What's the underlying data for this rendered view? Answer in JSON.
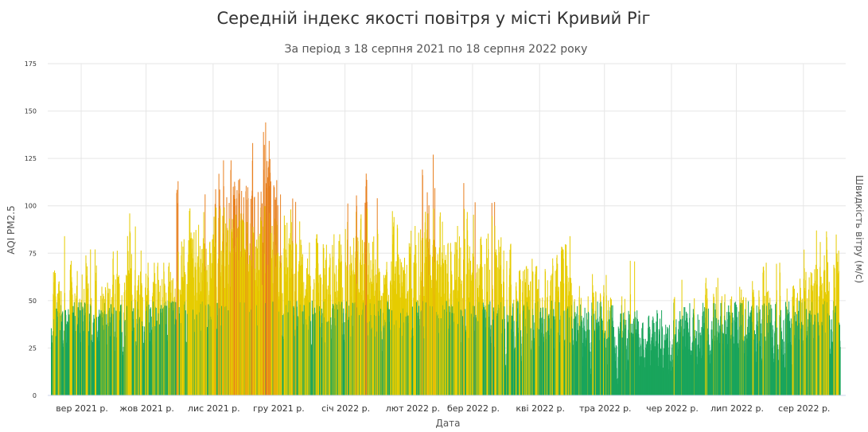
{
  "chart_data": {
    "type": "bar",
    "title": "Середній індекс якості повітря у місті Кривий Ріг",
    "subtitle": "За період з 18 серпня 2021 по 18 серпня 2022 року",
    "xlabel": "Дата",
    "ylabel": "AQI PM2.5",
    "y2label": "Швидкість вітру (м/с)",
    "ylim": [
      0,
      175
    ],
    "yticks": [
      0,
      25,
      50,
      75,
      100,
      125,
      150,
      175
    ],
    "xlim": [
      "2021-08-18",
      "2022-08-18"
    ],
    "xticks": [
      {
        "date": "2021-09-01",
        "label": "вер 2021 р."
      },
      {
        "date": "2021-10-01",
        "label": "жов 2021 р."
      },
      {
        "date": "2021-11-01",
        "label": "лис 2021 р."
      },
      {
        "date": "2021-12-01",
        "label": "гру 2021 р."
      },
      {
        "date": "2022-01-01",
        "label": "січ 2022 р."
      },
      {
        "date": "2022-02-01",
        "label": "лют 2022 р."
      },
      {
        "date": "2022-03-01",
        "label": "бер 2022 р."
      },
      {
        "date": "2022-04-01",
        "label": "кві 2022 р."
      },
      {
        "date": "2022-05-01",
        "label": "тра 2022 р."
      },
      {
        "date": "2022-06-01",
        "label": "чер 2022 р."
      },
      {
        "date": "2022-07-01",
        "label": "лип 2022 р."
      },
      {
        "date": "2022-08-01",
        "label": "сер 2022 р."
      }
    ],
    "grid": true,
    "legend": "none",
    "color_thresholds": [
      {
        "max": 50,
        "color": "#1aa55c"
      },
      {
        "max": 100,
        "color": "#e6cc00"
      },
      {
        "max": 175,
        "color": "#e87f1e"
      }
    ],
    "periods": [
      {
        "start": "2021-08-18",
        "end": "2021-09-01",
        "avg": 40,
        "peak": 84
      },
      {
        "start": "2021-09-01",
        "end": "2021-09-15",
        "avg": 42,
        "peak": 77
      },
      {
        "start": "2021-09-15",
        "end": "2021-10-01",
        "avg": 47,
        "peak": 96
      },
      {
        "start": "2021-10-01",
        "end": "2021-10-15",
        "avg": 42,
        "peak": 70
      },
      {
        "start": "2021-10-15",
        "end": "2021-11-01",
        "avg": 62,
        "peak": 113
      },
      {
        "start": "2021-11-01",
        "end": "2021-11-15",
        "avg": 72,
        "peak": 124
      },
      {
        "start": "2021-11-15",
        "end": "2021-12-01",
        "avg": 76,
        "peak": 144
      },
      {
        "start": "2021-12-01",
        "end": "2021-12-15",
        "avg": 60,
        "peak": 106
      },
      {
        "start": "2021-12-15",
        "end": "2022-01-01",
        "avg": 55,
        "peak": 85
      },
      {
        "start": "2022-01-01",
        "end": "2022-01-15",
        "avg": 62,
        "peak": 117
      },
      {
        "start": "2022-01-15",
        "end": "2022-02-01",
        "avg": 52,
        "peak": 104
      },
      {
        "start": "2022-02-01",
        "end": "2022-02-15",
        "avg": 66,
        "peak": 127
      },
      {
        "start": "2022-02-15",
        "end": "2022-03-01",
        "avg": 58,
        "peak": 112
      },
      {
        "start": "2022-03-01",
        "end": "2022-03-15",
        "avg": 52,
        "peak": 102
      },
      {
        "start": "2022-03-15",
        "end": "2022-04-01",
        "avg": 45,
        "peak": 80
      },
      {
        "start": "2022-04-01",
        "end": "2022-04-15",
        "avg": 44,
        "peak": 84
      },
      {
        "start": "2022-04-15",
        "end": "2022-05-01",
        "avg": 34,
        "peak": 64
      },
      {
        "start": "2022-05-01",
        "end": "2022-05-15",
        "avg": 30,
        "peak": 71
      },
      {
        "start": "2022-05-15",
        "end": "2022-06-01",
        "avg": 26,
        "peak": 45
      },
      {
        "start": "2022-06-01",
        "end": "2022-06-15",
        "avg": 32,
        "peak": 61
      },
      {
        "start": "2022-06-15",
        "end": "2022-07-01",
        "avg": 34,
        "peak": 62
      },
      {
        "start": "2022-07-01",
        "end": "2022-07-15",
        "avg": 38,
        "peak": 70
      },
      {
        "start": "2022-07-15",
        "end": "2022-08-01",
        "avg": 36,
        "peak": 70
      },
      {
        "start": "2022-08-01",
        "end": "2022-08-18",
        "avg": 50,
        "peak": 87
      }
    ]
  }
}
